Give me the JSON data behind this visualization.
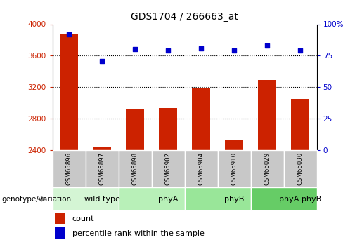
{
  "title": "GDS1704 / 266663_at",
  "samples": [
    "GSM65896",
    "GSM65897",
    "GSM65898",
    "GSM65902",
    "GSM65904",
    "GSM65910",
    "GSM66029",
    "GSM66030"
  ],
  "count_values": [
    3870,
    2440,
    2920,
    2930,
    3190,
    2530,
    3290,
    3050
  ],
  "percentile_values": [
    92,
    71,
    80,
    79,
    81,
    79,
    83,
    79
  ],
  "groups": [
    {
      "label": "wild type",
      "start": 0,
      "end": 2,
      "color": "#d4f5d4"
    },
    {
      "label": "phyA",
      "start": 2,
      "end": 4,
      "color": "#b8f0b8"
    },
    {
      "label": "phyB",
      "start": 4,
      "end": 6,
      "color": "#99e699"
    },
    {
      "label": "phyA phyB",
      "start": 6,
      "end": 8,
      "color": "#66cc66"
    }
  ],
  "group_label": "genotype/variation",
  "bar_color": "#cc2200",
  "dot_color": "#0000cc",
  "left_ylim": [
    2400,
    4000
  ],
  "left_yticks": [
    2400,
    2800,
    3200,
    3600,
    4000
  ],
  "right_ylim": [
    0,
    100
  ],
  "right_yticks": [
    0,
    25,
    50,
    75,
    100
  ],
  "grid_values": [
    2800,
    3200,
    3600
  ],
  "tick_box_color": "#c8c8c8",
  "background_color": "#ffffff",
  "legend_count_label": "count",
  "legend_percentile_label": "percentile rank within the sample"
}
